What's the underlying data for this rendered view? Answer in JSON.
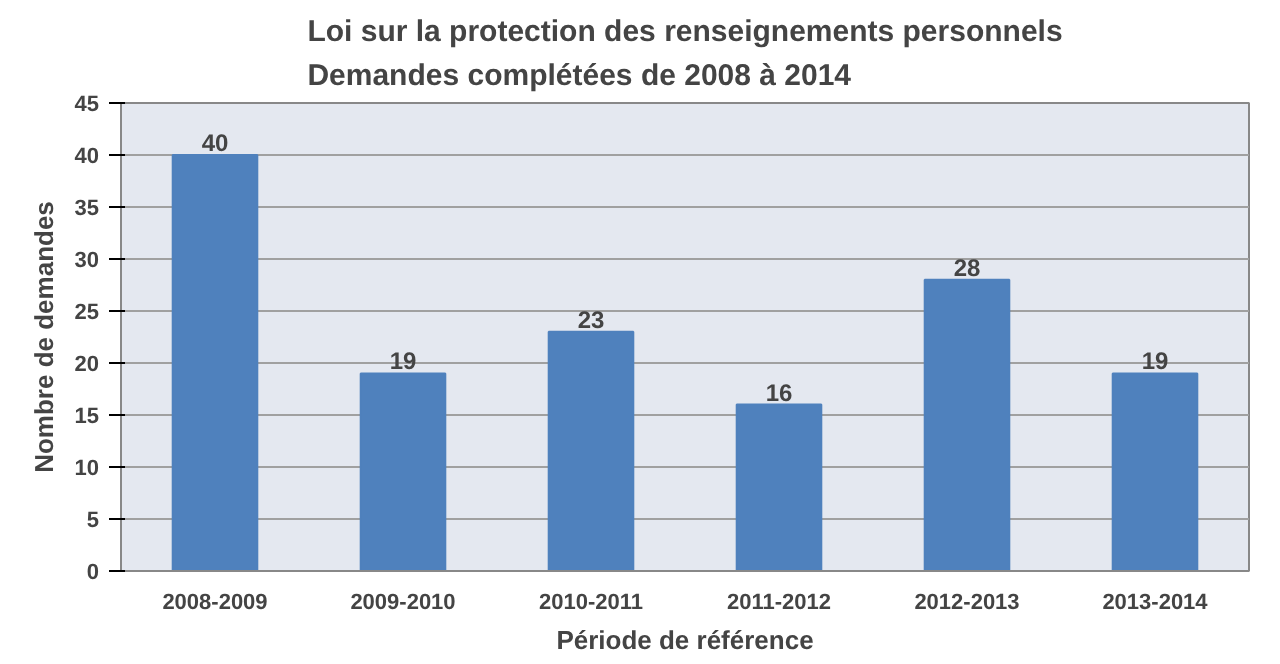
{
  "chart_data": {
    "type": "bar",
    "title": "Loi sur la protection des renseignements personnels\nDemandes complétées de 2008 à 2014",
    "xlabel": "Période de référence",
    "ylabel": "Nombre de demandes",
    "categories": [
      "2008-2009",
      "2009-2010",
      "2010-2011",
      "2011-2012",
      "2012-2013",
      "2013-2014"
    ],
    "values": [
      40,
      19,
      23,
      16,
      28,
      19
    ],
    "color": "#4f81bd",
    "ylim": [
      0,
      45
    ],
    "yticks": [
      0,
      5,
      10,
      15,
      20,
      25,
      30,
      35,
      40,
      45
    ],
    "grid": "y",
    "data_labels": true
  }
}
